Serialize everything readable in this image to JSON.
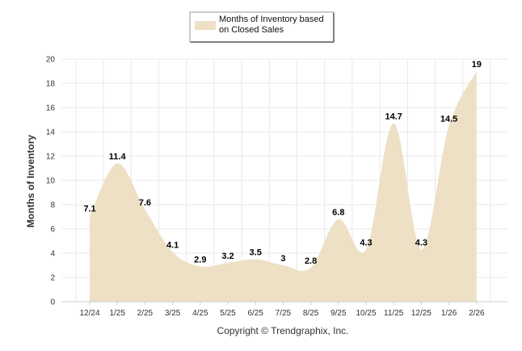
{
  "colors": {
    "area_fill": "#ede0c5",
    "grid": "#e8e8e8",
    "axis": "#cccccc",
    "text": "#333333"
  },
  "legend": {
    "label_line1": "Months of Inventory based",
    "label_line2": "on Closed Sales"
  },
  "footer": "Copyright © Trendgraphix, Inc.",
  "chart_data": {
    "type": "area",
    "title": "",
    "ylabel": "Months of Inventory",
    "xlabel": "",
    "ylim": [
      0,
      20
    ],
    "yticks": [
      0,
      2,
      4,
      6,
      8,
      10,
      12,
      14,
      16,
      18,
      20
    ],
    "grid": true,
    "legend_position": "top-center",
    "categories": [
      "12/24",
      "1/25",
      "2/25",
      "3/25",
      "4/25",
      "5/25",
      "6/25",
      "7/25",
      "8/25",
      "9/25",
      "10/25",
      "11/25",
      "12/25",
      "1/26",
      "2/26"
    ],
    "series": [
      {
        "name": "Months of Inventory based on Closed Sales",
        "values": [
          7.1,
          11.4,
          7.6,
          4.1,
          2.9,
          3.2,
          3.5,
          3,
          2.8,
          6.8,
          4.3,
          14.7,
          4.3,
          14.5,
          19
        ]
      }
    ]
  }
}
